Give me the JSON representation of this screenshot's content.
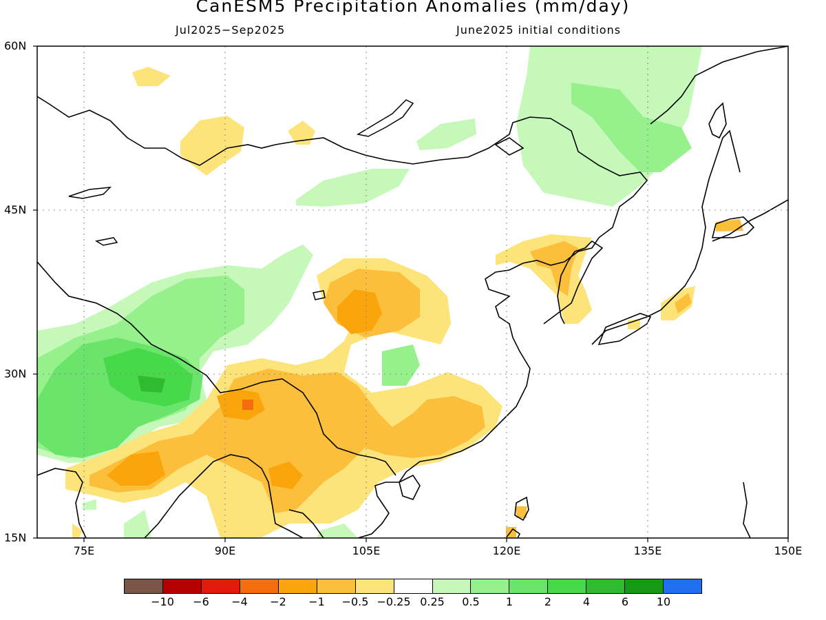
{
  "title": "CanESM5 Precipitation Anomalies (mm/day)",
  "subtitle_left": "Jul2025−Sep2025",
  "subtitle_right": "June2025 initial conditions",
  "lat_labels": [
    "60N",
    "45N",
    "30N",
    "15N"
  ],
  "lon_labels": [
    "75E",
    "90E",
    "105E",
    "120E",
    "135E",
    "150E"
  ],
  "colorbar": {
    "labels": [
      "−10",
      "−6",
      "−4",
      "−2",
      "−1",
      "−0.5",
      "−0.25",
      "0.25",
      "0.5",
      "1",
      "2",
      "4",
      "6",
      "10"
    ],
    "colors": [
      "#7a5649",
      "#b60000",
      "#e21a0c",
      "#f56e0d",
      "#f9a50b",
      "#fbbf3c",
      "#fde47a",
      "#ffffff",
      "#c5f8b9",
      "#96f08b",
      "#6ae46b",
      "#48d94b",
      "#2fbb30",
      "#159a16",
      "#1f6ff0"
    ]
  },
  "map": {
    "lon_range": [
      70,
      150
    ],
    "lat_range": [
      15,
      60
    ],
    "grid": true
  }
}
